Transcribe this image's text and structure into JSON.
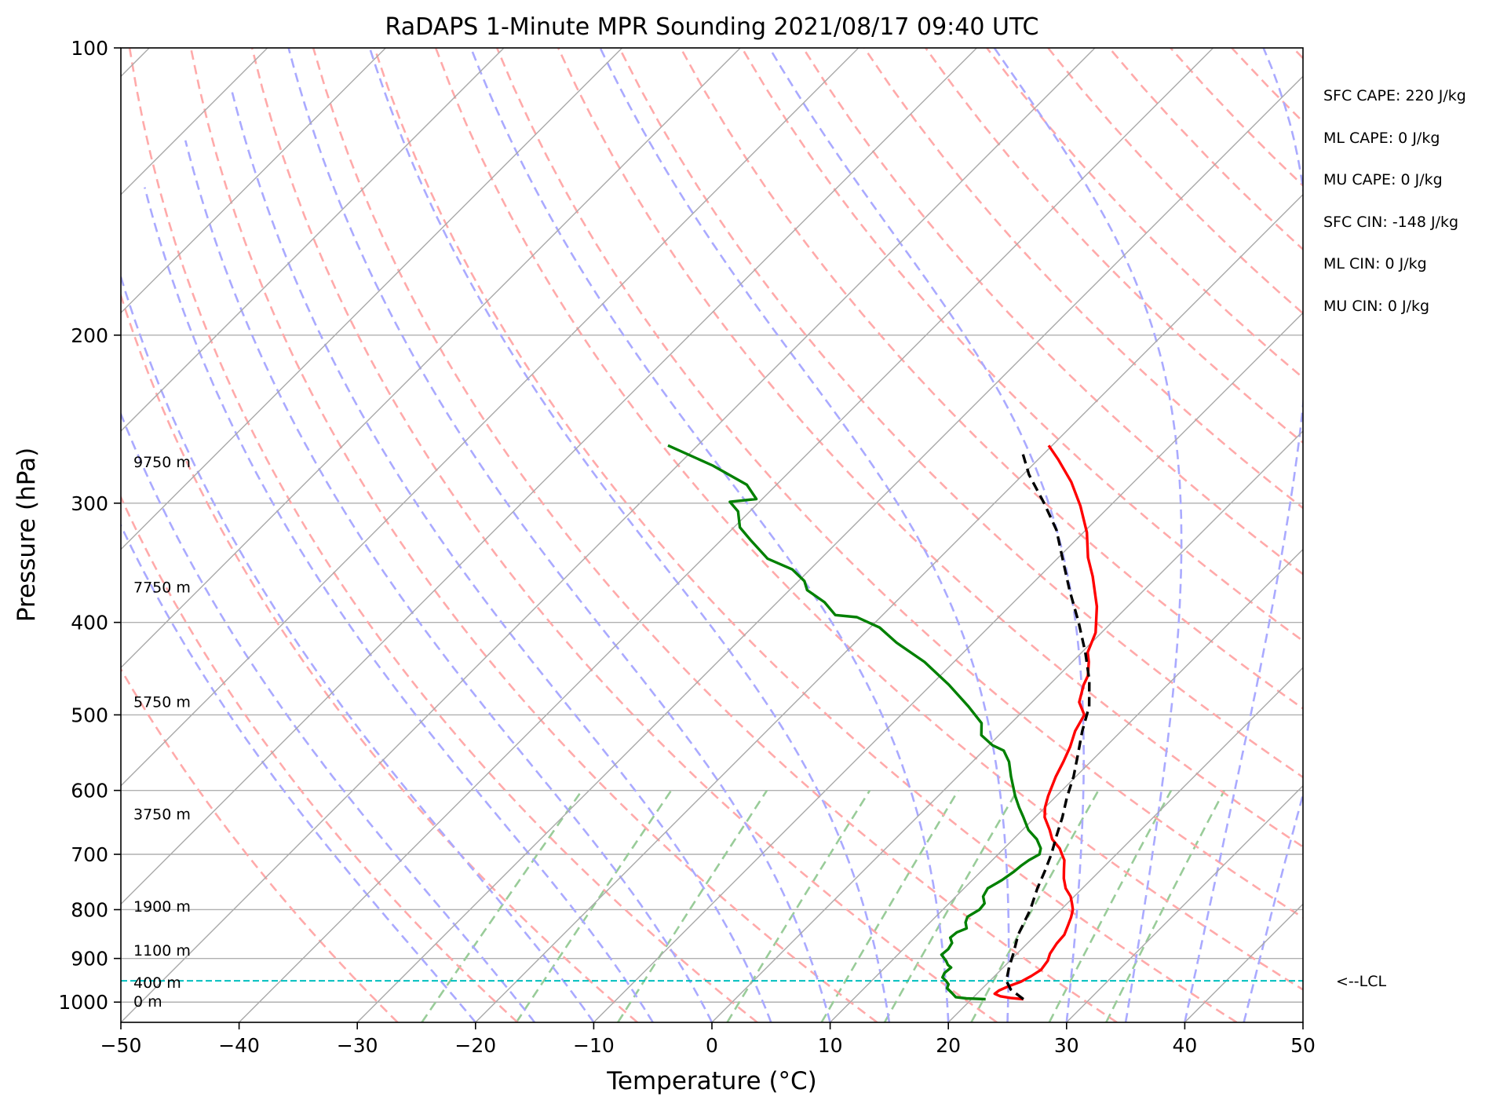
{
  "chart_data": {
    "type": "line",
    "title": "RaDAPS 1-Minute MPR Sounding 2021/08/17 09:40 UTC",
    "xlabel": "Temperature (°C)",
    "ylabel": "Pressure (hPa)",
    "xlim": [
      -50,
      50
    ],
    "ylim": [
      1050,
      100
    ],
    "y_scale": "log",
    "x_ticks": [
      -50,
      -40,
      -30,
      -20,
      -10,
      0,
      10,
      20,
      30,
      40,
      50
    ],
    "x_tick_labels": [
      "−50",
      "−40",
      "−30",
      "−20",
      "−10",
      "0",
      "10",
      "20",
      "30",
      "40",
      "50"
    ],
    "y_ticks": [
      100,
      200,
      300,
      400,
      500,
      600,
      700,
      800,
      900,
      1000
    ],
    "y_tick_labels": [
      "100",
      "200",
      "300",
      "400",
      "500",
      "600",
      "700",
      "800",
      "900",
      "1000"
    ],
    "grid": true,
    "background_lines": {
      "isotherm_step_c": 10,
      "isotherm_range_c": [
        -200,
        50
      ],
      "dry_adiabat_theta_k": [
        -30,
        -20,
        -10,
        0,
        10,
        20,
        30,
        40,
        50,
        60,
        70,
        80,
        90,
        100,
        110,
        120,
        130,
        140,
        150,
        160,
        170,
        180,
        190,
        200
      ],
      "moist_adiabat_surface_c": [
        -20,
        -15,
        -10,
        -5,
        0,
        5,
        10,
        15,
        20,
        25,
        30,
        35,
        40,
        45
      ],
      "mixing_ratio_g_per_kg": [
        0.5,
        1,
        2,
        4,
        7,
        10,
        16,
        24,
        32
      ],
      "mixing_ratio_top_hpa": 600
    },
    "series": [
      {
        "key": "temperature",
        "color": "#ff0000",
        "points": [
          [
            24.4,
            993
          ],
          [
            23.2,
            990
          ],
          [
            22.2,
            986
          ],
          [
            21.5,
            980
          ],
          [
            21.6,
            972
          ],
          [
            22.0,
            963
          ],
          [
            22.7,
            952
          ],
          [
            23.1,
            939
          ],
          [
            23.4,
            925
          ],
          [
            23.2,
            905
          ],
          [
            22.8,
            890
          ],
          [
            22.5,
            868
          ],
          [
            22.4,
            850
          ],
          [
            21.9,
            830
          ],
          [
            21.5,
            815
          ],
          [
            21.0,
            800
          ],
          [
            20.5,
            790
          ],
          [
            19.7,
            775
          ],
          [
            18.6,
            760
          ],
          [
            17.6,
            742
          ],
          [
            16.8,
            725
          ],
          [
            16.1,
            710
          ],
          [
            15.4,
            700
          ],
          [
            14.7,
            690
          ],
          [
            13.3,
            675
          ],
          [
            12.3,
            660
          ],
          [
            10.8,
            640
          ],
          [
            10.0,
            625
          ],
          [
            9.3,
            608
          ],
          [
            8.3,
            580
          ],
          [
            7.7,
            560
          ],
          [
            7.0,
            540
          ],
          [
            6.1,
            520
          ],
          [
            5.5,
            500
          ],
          [
            4.0,
            485
          ],
          [
            2.9,
            465
          ],
          [
            2.5,
            455
          ],
          [
            1.4,
            440
          ],
          [
            0.5,
            430
          ],
          [
            -0.5,
            410
          ],
          [
            -2.6,
            385
          ],
          [
            -5.5,
            358
          ],
          [
            -7.5,
            342
          ],
          [
            -9.7,
            322
          ],
          [
            -12.5,
            302
          ],
          [
            -15.3,
            285
          ],
          [
            -18.3,
            270
          ],
          [
            -20.3,
            261
          ]
        ]
      },
      {
        "key": "dewpoint",
        "color": "#008000",
        "points": [
          [
            21.2,
            993
          ],
          [
            19.5,
            991
          ],
          [
            18.5,
            988
          ],
          [
            17.8,
            978
          ],
          [
            17.0,
            967
          ],
          [
            16.8,
            958
          ],
          [
            16.3,
            950
          ],
          [
            15.7,
            942
          ],
          [
            15.5,
            932
          ],
          [
            15.6,
            920
          ],
          [
            15.1,
            914
          ],
          [
            14.6,
            905
          ],
          [
            13.7,
            892
          ],
          [
            13.8,
            880
          ],
          [
            13.6,
            867
          ],
          [
            13.0,
            856
          ],
          [
            13.1,
            845
          ],
          [
            13.6,
            837
          ],
          [
            13.0,
            825
          ],
          [
            12.7,
            814
          ],
          [
            13.1,
            800
          ],
          [
            13.0,
            788
          ],
          [
            12.3,
            775
          ],
          [
            12.0,
            760
          ],
          [
            12.5,
            745
          ],
          [
            12.8,
            730
          ],
          [
            12.9,
            720
          ],
          [
            13.1,
            710
          ],
          [
            13.5,
            700
          ],
          [
            13.1,
            690
          ],
          [
            12.0,
            675
          ],
          [
            10.5,
            660
          ],
          [
            9.0,
            640
          ],
          [
            7.8,
            625
          ],
          [
            6.5,
            608
          ],
          [
            4.5,
            580
          ],
          [
            3.1,
            560
          ],
          [
            1.7,
            545
          ],
          [
            0.3,
            538
          ],
          [
            -1.5,
            525
          ],
          [
            -2.5,
            510
          ],
          [
            -5.0,
            490
          ],
          [
            -8.5,
            465
          ],
          [
            -12.5,
            440
          ],
          [
            -16.5,
            420
          ],
          [
            -19.2,
            405
          ],
          [
            -22.0,
            395
          ],
          [
            -24.0,
            393
          ],
          [
            -26.0,
            381
          ],
          [
            -28.5,
            370
          ],
          [
            -29.5,
            362
          ],
          [
            -31.5,
            352
          ],
          [
            -34.5,
            343
          ],
          [
            -37.5,
            328
          ],
          [
            -39.5,
            318
          ],
          [
            -41.0,
            306
          ],
          [
            -42.5,
            299
          ],
          [
            -40.5,
            297
          ],
          [
            -42.5,
            287
          ],
          [
            -47.0,
            274
          ],
          [
            -52.5,
            261
          ]
        ]
      },
      {
        "key": "parcel",
        "color": "#000000",
        "dashed": true,
        "points": [
          [
            24.4,
            993
          ],
          [
            22.5,
            970
          ],
          [
            21.4,
            950
          ],
          [
            20.5,
            920
          ],
          [
            19.7,
            890
          ],
          [
            18.5,
            850
          ],
          [
            17.4,
            800
          ],
          [
            16.2,
            760
          ],
          [
            15.4,
            730
          ],
          [
            14.5,
            700
          ],
          [
            13.4,
            670
          ],
          [
            12.3,
            640
          ],
          [
            11.0,
            610
          ],
          [
            9.8,
            580
          ],
          [
            8.3,
            550
          ],
          [
            6.7,
            520
          ],
          [
            5.2,
            490
          ],
          [
            3.0,
            460
          ],
          [
            0.3,
            430
          ],
          [
            -2.8,
            400
          ],
          [
            -6.3,
            370
          ],
          [
            -9.3,
            345
          ],
          [
            -12.5,
            320
          ],
          [
            -15.8,
            300
          ],
          [
            -19.5,
            280
          ],
          [
            -22.0,
            265
          ]
        ]
      }
    ],
    "lcl": {
      "pressure_hpa": 950,
      "label": "<--LCL",
      "color": "#00bfbf"
    },
    "height_labels": [
      {
        "text": "0 m",
        "pressure_hpa": 1000
      },
      {
        "text": "400 m",
        "pressure_hpa": 955
      },
      {
        "text": "1100 m",
        "pressure_hpa": 884
      },
      {
        "text": "1900 m",
        "pressure_hpa": 795
      },
      {
        "text": "3750 m",
        "pressure_hpa": 636
      },
      {
        "text": "5750 m",
        "pressure_hpa": 485
      },
      {
        "text": "7750 m",
        "pressure_hpa": 368
      },
      {
        "text": "9750 m",
        "pressure_hpa": 272
      }
    ],
    "colors": {
      "isotherm": "#a9a9a9",
      "dry_adiabat": "#ffaaaa",
      "moist_adiabat": "#aaaaff",
      "mixing_ratio": "#99cc99"
    }
  },
  "stats": [
    "SFC CAPE: 220 J/kg",
    "ML CAPE: 0 J/kg",
    "MU CAPE: 0 J/kg",
    "SFC CIN: -148 J/kg",
    "ML CIN: 0 J/kg",
    "MU CIN: 0 J/kg"
  ]
}
